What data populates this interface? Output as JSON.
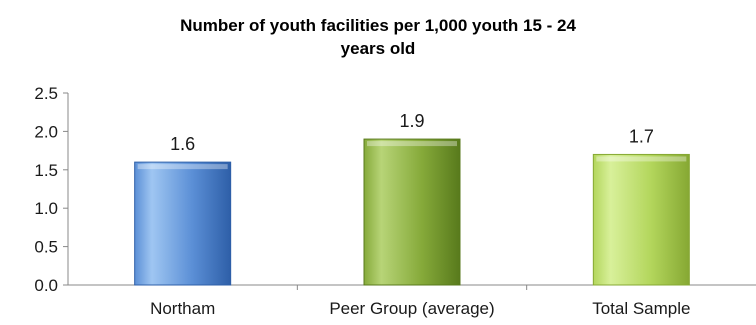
{
  "chart_data": {
    "type": "bar",
    "title_lines": [
      "Number of youth facilities per 1,000 youth 15 - 24",
      "years old"
    ],
    "categories": [
      "Northam",
      "Peer Group (average)",
      "Total Sample"
    ],
    "values": [
      1.6,
      1.9,
      1.7
    ],
    "data_labels": [
      "1.6",
      "1.9",
      "1.7"
    ],
    "yticks": [
      "0.0",
      "0.5",
      "1.0",
      "1.5",
      "2.0",
      "2.5"
    ],
    "ylim": [
      0,
      2.5
    ],
    "grid": false,
    "legend": "none",
    "colors": {
      "Northam": [
        "#9fc6f2",
        "#5b8fd6",
        "#2e5fa8"
      ],
      "Peer Group (average)": [
        "#b7d477",
        "#86aa3a",
        "#587a1c"
      ],
      "Total Sample": [
        "#d8f09a",
        "#b3d65c",
        "#86a833"
      ]
    }
  }
}
